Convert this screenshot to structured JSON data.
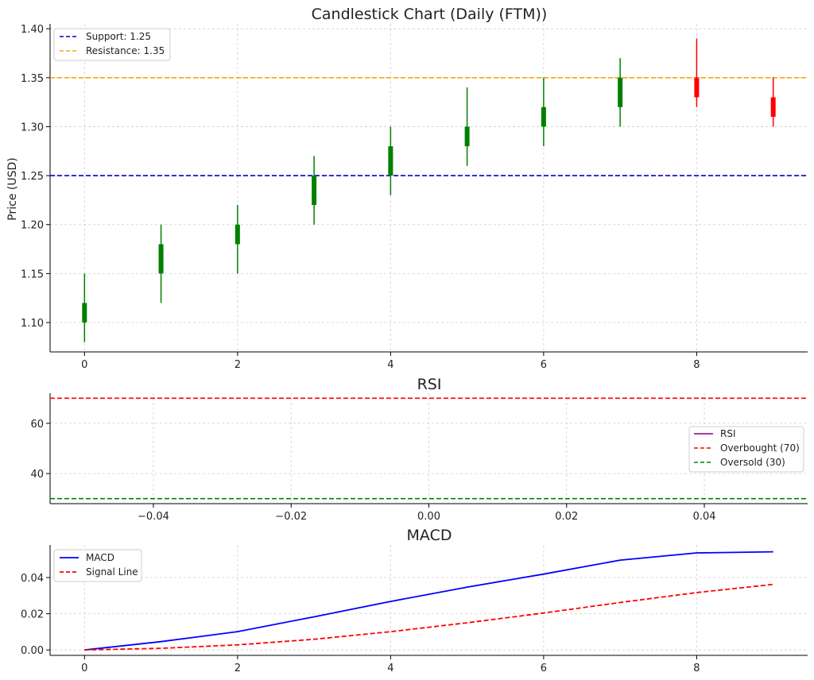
{
  "chart_data": [
    {
      "type": "candlestick",
      "title": "Candlestick Chart (Daily (FTM))",
      "ylabel": "Price (USD)",
      "xlabel": "",
      "x_ticks": [
        "0",
        "2",
        "4",
        "6",
        "8"
      ],
      "y_ticks": [
        "1.10",
        "1.15",
        "1.20",
        "1.25",
        "1.30",
        "1.35",
        "1.40"
      ],
      "xlim": [
        -0.45,
        9.45
      ],
      "ylim": [
        1.07,
        1.405
      ],
      "grid": true,
      "legend_position": "top-left",
      "candles": [
        {
          "x": 0,
          "open": 1.1,
          "high": 1.15,
          "low": 1.08,
          "close": 1.12,
          "color": "#008000"
        },
        {
          "x": 1,
          "open": 1.15,
          "high": 1.2,
          "low": 1.12,
          "close": 1.18,
          "color": "#008000"
        },
        {
          "x": 2,
          "open": 1.18,
          "high": 1.22,
          "low": 1.15,
          "close": 1.2,
          "color": "#008000"
        },
        {
          "x": 3,
          "open": 1.22,
          "high": 1.27,
          "low": 1.2,
          "close": 1.25,
          "color": "#008000"
        },
        {
          "x": 4,
          "open": 1.25,
          "high": 1.3,
          "low": 1.23,
          "close": 1.28,
          "color": "#008000"
        },
        {
          "x": 5,
          "open": 1.28,
          "high": 1.34,
          "low": 1.26,
          "close": 1.3,
          "color": "#008000"
        },
        {
          "x": 6,
          "open": 1.3,
          "high": 1.35,
          "low": 1.28,
          "close": 1.32,
          "color": "#008000"
        },
        {
          "x": 7,
          "open": 1.32,
          "high": 1.37,
          "low": 1.3,
          "close": 1.35,
          "color": "#008000"
        },
        {
          "x": 8,
          "open": 1.35,
          "high": 1.39,
          "low": 1.32,
          "close": 1.33,
          "color": "#ff0000"
        },
        {
          "x": 9,
          "open": 1.33,
          "high": 1.35,
          "low": 1.3,
          "close": 1.31,
          "color": "#ff0000"
        }
      ],
      "hlines": [
        {
          "name": "Support: 1.25",
          "y": 1.25,
          "color": "#0000cc",
          "style": "dashed"
        },
        {
          "name": "Resistance: 1.35",
          "y": 1.35,
          "color": "#ffa500",
          "style": "dashed"
        }
      ]
    },
    {
      "type": "line",
      "title": "RSI",
      "x_ticks": [
        "−0.04",
        "−0.02",
        "0.00",
        "0.02",
        "0.04"
      ],
      "y_ticks": [
        "40",
        "60"
      ],
      "xlim": [
        -0.055,
        0.055
      ],
      "ylim": [
        28,
        72
      ],
      "grid": true,
      "legend_position": "right",
      "series": [
        {
          "name": "RSI",
          "x": [],
          "values": [],
          "color": "#800080",
          "style": "solid"
        }
      ],
      "hlines": [
        {
          "name": "Overbought (70)",
          "y": 70,
          "color": "#ff0000",
          "style": "dashed"
        },
        {
          "name": "Oversold (30)",
          "y": 30,
          "color": "#008000",
          "style": "dashed"
        }
      ]
    },
    {
      "type": "line",
      "title": "MACD",
      "x_ticks": [
        "0",
        "2",
        "4",
        "6",
        "8"
      ],
      "y_ticks": [
        "0.00",
        "0.02",
        "0.04"
      ],
      "xlim": [
        -0.45,
        9.45
      ],
      "ylim": [
        -0.003,
        0.058
      ],
      "grid": true,
      "legend_position": "top-left",
      "x": [
        0,
        1,
        2,
        3,
        4,
        5,
        6,
        7,
        8,
        9
      ],
      "series": [
        {
          "name": "MACD",
          "values": [
            0.0,
            0.0046,
            0.0101,
            0.0183,
            0.0268,
            0.0347,
            0.0419,
            0.0496,
            0.0536,
            0.0542
          ],
          "color": "#0000ff",
          "style": "solid"
        },
        {
          "name": "Signal Line",
          "values": [
            0.0,
            0.0009,
            0.0028,
            0.0059,
            0.0101,
            0.015,
            0.0204,
            0.0262,
            0.0317,
            0.0362
          ],
          "color": "#ff0000",
          "style": "dashed"
        }
      ]
    }
  ]
}
